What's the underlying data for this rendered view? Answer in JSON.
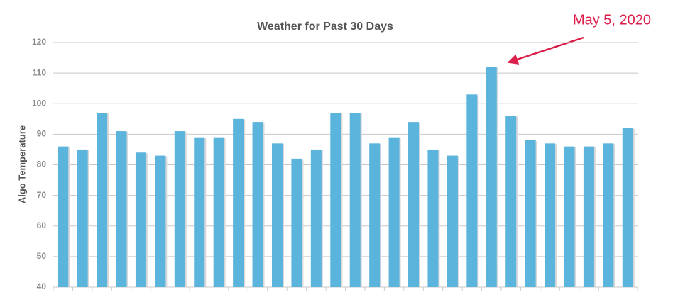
{
  "chart_data": {
    "type": "bar",
    "title": "Weather for Past 30 Days",
    "y_label": "Algo Temperature",
    "annotation": "May 5, 2020",
    "categories": [
      null,
      null,
      null,
      null,
      null,
      null,
      null,
      null,
      null,
      null,
      null,
      null,
      null,
      null,
      null,
      null,
      null,
      null,
      null,
      null,
      null,
      null,
      null,
      null,
      null,
      null,
      null,
      null,
      null,
      null
    ],
    "values": [
      86,
      85,
      97,
      91,
      84,
      83,
      91,
      89,
      89,
      95,
      94,
      87,
      82,
      85,
      97,
      97,
      87,
      89,
      94,
      85,
      83,
      103,
      112,
      96,
      88,
      87,
      86,
      86,
      87,
      92
    ],
    "color": "#5ab4dc",
    "ylim": [
      40,
      120
    ],
    "yticks": [
      40,
      50,
      60,
      70,
      80,
      90,
      100,
      110,
      120
    ],
    "grid": true
  }
}
